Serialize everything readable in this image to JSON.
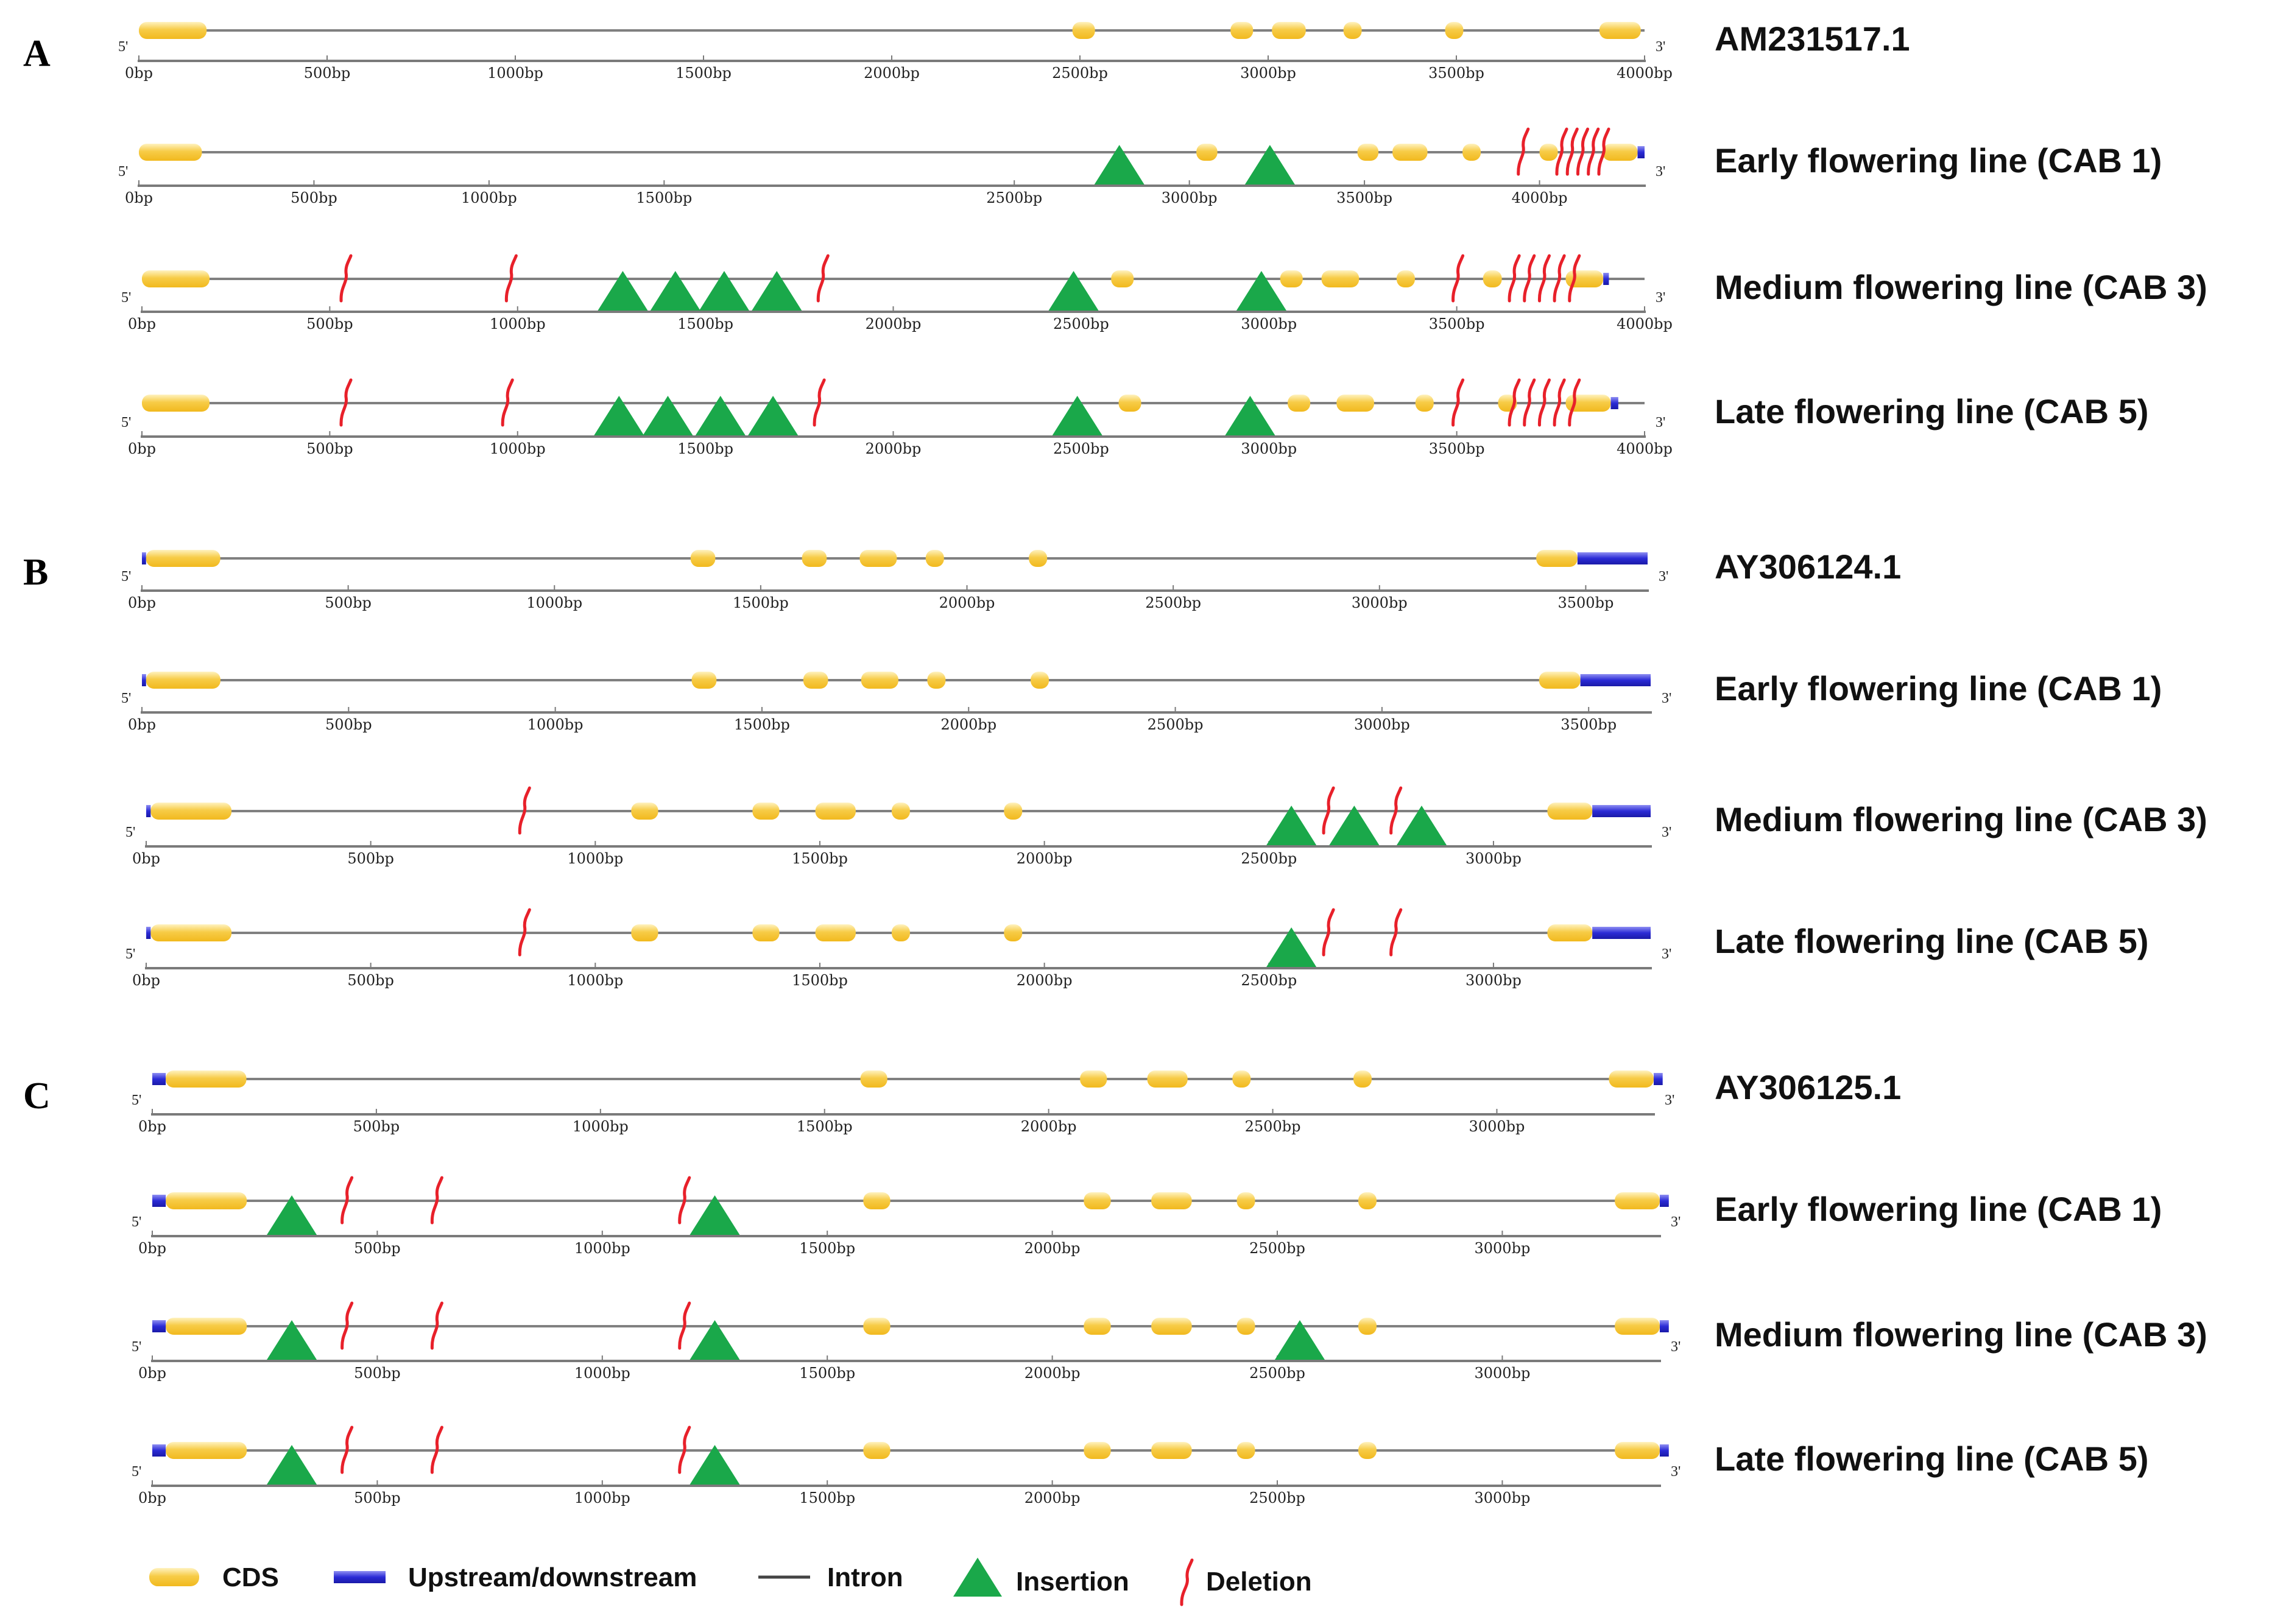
{
  "colors": {
    "cds": "#f7cc47",
    "cds_highlight": "#fde9a6",
    "updown": "#2b2bd6",
    "intron": "#808080",
    "axis": "#7a7a7a",
    "insertion": "#1aa84a",
    "deletion": "#e8202a",
    "tick_blue": "#3355aa"
  },
  "end_labels": {
    "five_prime": "5'",
    "three_prime": "3'"
  },
  "panels": [
    {
      "letter": "A",
      "tracks": [
        {
          "label": "AM231517.1",
          "ticks": [
            "0bp",
            "500bp",
            "1000bp",
            "1500bp",
            "2000bp",
            "2500bp",
            "3000bp",
            "3500bp",
            "4000bp"
          ],
          "length_bp": 4000,
          "cds": [
            [
              0,
              180
            ],
            [
              2480,
              2540
            ],
            [
              2900,
              2960
            ],
            [
              3010,
              3100
            ],
            [
              3200,
              3240
            ],
            [
              3470,
              3510
            ],
            [
              3880,
              3990
            ]
          ],
          "updown": [],
          "insertions": [],
          "deletions": []
        },
        {
          "label": "Early flowering line (CAB 1)",
          "ticks": [
            "0bp",
            "500bp",
            "1000bp",
            "1500bp",
            "2500bp",
            "3000bp",
            "3500bp",
            "4000bp"
          ],
          "length_bp": 4300,
          "cds": [
            [
              0,
              180
            ],
            [
              3020,
              3080
            ],
            [
              3480,
              3540
            ],
            [
              3580,
              3680
            ],
            [
              3780,
              3820
            ],
            [
              4000,
              4040
            ],
            [
              4180,
              4280
            ]
          ],
          "updown": [
            [
              4280,
              4300
            ]
          ],
          "insertions": [
            2800,
            3230
          ],
          "deletions": [
            3950,
            4060,
            4090,
            4120,
            4150,
            4180
          ]
        },
        {
          "label": "Medium flowering line (CAB 3)",
          "ticks": [
            "0bp",
            "500bp",
            "1000bp",
            "1500bp",
            "2000bp",
            "2500bp",
            "3000bp",
            "3500bp",
            "4000bp"
          ],
          "length_bp": 4000,
          "cds": [
            [
              0,
              180
            ],
            [
              2580,
              2640
            ],
            [
              3030,
              3090
            ],
            [
              3140,
              3240
            ],
            [
              3340,
              3380
            ],
            [
              3570,
              3620
            ],
            [
              3790,
              3890
            ]
          ],
          "updown": [
            [
              3890,
              3905
            ]
          ],
          "insertions": [
            1280,
            1420,
            1550,
            1690,
            2480,
            2980
          ],
          "deletions": [
            540,
            980,
            1810,
            3500,
            3650,
            3690,
            3730,
            3770,
            3810
          ]
        },
        {
          "label": "Late flowering line (CAB 5)",
          "ticks": [
            "0bp",
            "500bp",
            "1000bp",
            "1500bp",
            "2000bp",
            "2500bp",
            "3000bp",
            "3500bp",
            "4000bp"
          ],
          "length_bp": 4000,
          "cds": [
            [
              0,
              180
            ],
            [
              2600,
              2660
            ],
            [
              3050,
              3110
            ],
            [
              3180,
              3280
            ],
            [
              3390,
              3430
            ],
            [
              3610,
              3660
            ],
            [
              3790,
              3910
            ]
          ],
          "updown": [
            [
              3910,
              3930
            ]
          ],
          "insertions": [
            1270,
            1400,
            1540,
            1680,
            2490,
            2950
          ],
          "deletions": [
            540,
            970,
            1800,
            3500,
            3650,
            3690,
            3730,
            3770,
            3810
          ]
        }
      ]
    },
    {
      "letter": "B",
      "tracks": [
        {
          "label": "AY306124.1",
          "ticks": [
            "0bp",
            "500bp",
            "1000bp",
            "1500bp",
            "2000bp",
            "2500bp",
            "3000bp",
            "3500bp"
          ],
          "length_bp": 3650,
          "cds": [
            [
              10,
              190
            ],
            [
              1330,
              1390
            ],
            [
              1600,
              1660
            ],
            [
              1740,
              1830
            ],
            [
              1900,
              1940
            ],
            [
              2150,
              2190
            ],
            [
              3380,
              3480
            ]
          ],
          "updown": [
            [
              0,
              10
            ],
            [
              3480,
              3650
            ]
          ],
          "insertions": [],
          "deletions": []
        },
        {
          "label": "Early flowering line (CAB 1)",
          "ticks": [
            "0bp",
            "500bp",
            "1000bp",
            "1500bp",
            "2000bp",
            "2500bp",
            "3000bp",
            "3500bp"
          ],
          "length_bp": 3650,
          "cds": [
            [
              10,
              190
            ],
            [
              1330,
              1390
            ],
            [
              1600,
              1660
            ],
            [
              1740,
              1830
            ],
            [
              1900,
              1940
            ],
            [
              2150,
              2190
            ],
            [
              3380,
              3480
            ]
          ],
          "updown": [
            [
              0,
              10
            ],
            [
              3480,
              3650
            ]
          ],
          "insertions": [],
          "deletions": []
        },
        {
          "label": "Medium flowering line (CAB 3)",
          "ticks": [
            "0bp",
            "500bp",
            "1000bp",
            "1500bp",
            "2000bp",
            "2500bp",
            "3000bp"
          ],
          "length_bp": 3350,
          "cds": [
            [
              10,
              190
            ],
            [
              1080,
              1140
            ],
            [
              1350,
              1410
            ],
            [
              1490,
              1580
            ],
            [
              1660,
              1700
            ],
            [
              1910,
              1950
            ],
            [
              3120,
              3220
            ]
          ],
          "updown": [
            [
              0,
              10
            ],
            [
              3220,
              3350
            ]
          ],
          "insertions": [
            2550,
            2690,
            2840
          ],
          "deletions": [
            840,
            2630,
            2780
          ]
        },
        {
          "label": "Late flowering line (CAB 5)",
          "ticks": [
            "0bp",
            "500bp",
            "1000bp",
            "1500bp",
            "2000bp",
            "2500bp",
            "3000bp"
          ],
          "length_bp": 3350,
          "cds": [
            [
              10,
              190
            ],
            [
              1080,
              1140
            ],
            [
              1350,
              1410
            ],
            [
              1490,
              1580
            ],
            [
              1660,
              1700
            ],
            [
              1910,
              1950
            ],
            [
              3120,
              3220
            ]
          ],
          "updown": [
            [
              0,
              10
            ],
            [
              3220,
              3350
            ]
          ],
          "insertions": [
            2550
          ],
          "deletions": [
            840,
            2630,
            2780
          ]
        }
      ]
    },
    {
      "letter": "C",
      "tracks": [
        {
          "label": "AY306125.1",
          "ticks": [
            "0bp",
            "500bp",
            "1000bp",
            "1500bp",
            "2000bp",
            "2500bp",
            "3000bp"
          ],
          "length_bp": 3350,
          "cds": [
            [
              30,
              210
            ],
            [
              1580,
              1640
            ],
            [
              2070,
              2130
            ],
            [
              2220,
              2310
            ],
            [
              2410,
              2450
            ],
            [
              2680,
              2720
            ],
            [
              3250,
              3350
            ]
          ],
          "updown": [
            [
              0,
              30
            ],
            [
              3350,
              3370
            ]
          ],
          "insertions": [],
          "deletions": []
        },
        {
          "label": "Early flowering line (CAB 1)",
          "ticks": [
            "0bp",
            "500bp",
            "1000bp",
            "1500bp",
            "2000bp",
            "2500bp",
            "3000bp"
          ],
          "length_bp": 3350,
          "cds": [
            [
              30,
              210
            ],
            [
              1580,
              1640
            ],
            [
              2070,
              2130
            ],
            [
              2220,
              2310
            ],
            [
              2410,
              2450
            ],
            [
              2680,
              2720
            ],
            [
              3250,
              3350
            ]
          ],
          "updown": [
            [
              0,
              30
            ],
            [
              3350,
              3370
            ]
          ],
          "insertions": [
            310,
            1250
          ],
          "deletions": [
            430,
            630,
            1180
          ]
        },
        {
          "label": "Medium flowering line (CAB 3)",
          "ticks": [
            "0bp",
            "500bp",
            "1000bp",
            "1500bp",
            "2000bp",
            "2500bp",
            "3000bp"
          ],
          "length_bp": 3350,
          "cds": [
            [
              30,
              210
            ],
            [
              1580,
              1640
            ],
            [
              2070,
              2130
            ],
            [
              2220,
              2310
            ],
            [
              2410,
              2450
            ],
            [
              2680,
              2720
            ],
            [
              3250,
              3350
            ]
          ],
          "updown": [
            [
              0,
              30
            ],
            [
              3350,
              3370
            ]
          ],
          "insertions": [
            310,
            1250,
            2550
          ],
          "deletions": [
            430,
            630,
            1180
          ]
        },
        {
          "label": "Late flowering line (CAB 5)",
          "ticks": [
            "0bp",
            "500bp",
            "1000bp",
            "1500bp",
            "2000bp",
            "2500bp",
            "3000bp"
          ],
          "length_bp": 3350,
          "cds": [
            [
              30,
              210
            ],
            [
              1580,
              1640
            ],
            [
              2070,
              2130
            ],
            [
              2220,
              2310
            ],
            [
              2410,
              2450
            ],
            [
              2680,
              2720
            ],
            [
              3250,
              3350
            ]
          ],
          "updown": [
            [
              0,
              30
            ],
            [
              3350,
              3370
            ]
          ],
          "insertions": [
            310,
            1250
          ],
          "deletions": [
            430,
            630,
            1180
          ]
        }
      ]
    }
  ],
  "legend": {
    "cds": "CDS",
    "updown": "Upstream/downstream",
    "intron": "Intron",
    "insertion": "Insertion",
    "deletion": "Deletion"
  }
}
